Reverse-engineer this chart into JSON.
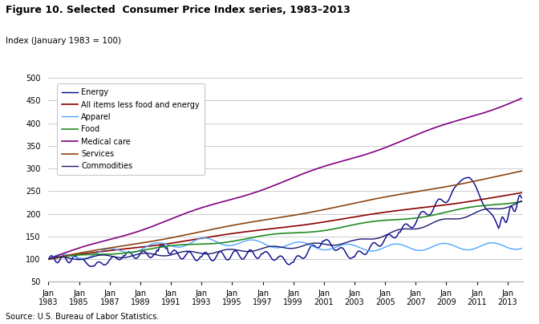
{
  "title": "Figure 10. Selected  Consumer Price Index series, 1983–2013",
  "ylabel": "Index (January 1983 = 100)",
  "source": "Source: U.S. Bureau of Labor Statistics.",
  "ylim": [
    50,
    500
  ],
  "yticks": [
    50,
    100,
    150,
    200,
    250,
    300,
    350,
    400,
    450,
    500
  ],
  "xlim_start": 1983,
  "xlim_end": 2014.0,
  "xtick_years": [
    1983,
    1985,
    1987,
    1989,
    1991,
    1993,
    1995,
    1997,
    1999,
    2001,
    2003,
    2005,
    2007,
    2009,
    2011,
    2013
  ],
  "series_order": [
    "Energy",
    "All items less food and energy",
    "Apparel",
    "Food",
    "Medical care",
    "Services",
    "Commodities"
  ],
  "series": {
    "Energy": {
      "color": "#00008B",
      "linewidth": 1.0
    },
    "All items less food and energy": {
      "color": "#8B0000",
      "linewidth": 1.2
    },
    "Apparel": {
      "color": "#4da6ff",
      "linewidth": 1.0
    },
    "Food": {
      "color": "#228B22",
      "linewidth": 1.2
    },
    "Medical care": {
      "color": "#800080",
      "linewidth": 1.2
    },
    "Services": {
      "color": "#8B4513",
      "linewidth": 1.2
    },
    "Commodities": {
      "color": "#191970",
      "linewidth": 1.0
    }
  },
  "background_color": "#ffffff",
  "grid_color": "#cccccc",
  "title_fontsize": 9,
  "ylabel_fontsize": 7.5,
  "tick_fontsize": 7,
  "source_fontsize": 7,
  "legend_fontsize": 7
}
